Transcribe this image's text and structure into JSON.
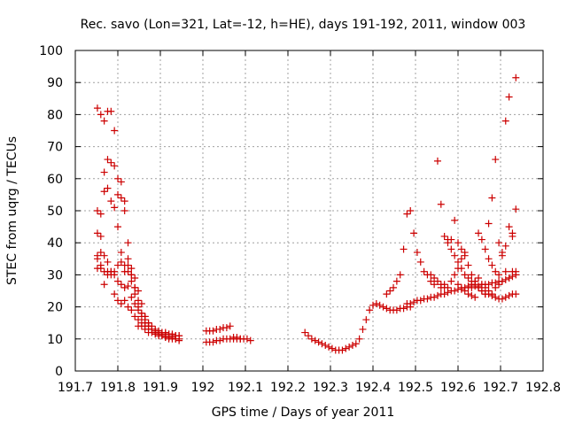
{
  "chart_data": {
    "type": "scatter",
    "title": "Rec. savo (Lon=321, Lat=-12, h=HE), days 191-192, 2011, window 003",
    "xlabel": "GPS time / Days of year 2011",
    "ylabel": "STEC from uqrg / TECUs",
    "xlim": [
      191.7,
      192.8
    ],
    "ylim": [
      0,
      100
    ],
    "x_ticks": [
      191.7,
      191.8,
      191.9,
      192.0,
      192.1,
      192.2,
      192.3,
      192.4,
      192.5,
      192.6,
      192.7,
      192.8
    ],
    "x_tick_labels": [
      "191.7",
      "191.8",
      "191.9",
      "192",
      "192.1",
      "192.2",
      "192.3",
      "192.4",
      "192.5",
      "192.6",
      "192.7",
      "192.8"
    ],
    "y_ticks": [
      0,
      10,
      20,
      30,
      40,
      50,
      60,
      70,
      80,
      90,
      100
    ],
    "y_tick_labels": [
      "0",
      "10",
      "20",
      "30",
      "40",
      "50",
      "60",
      "70",
      "80",
      "90",
      "100"
    ],
    "grid": true,
    "marker": "plus",
    "color": "#cc0000",
    "series": [
      {
        "x": [
          191.752,
          191.76,
          191.768,
          191.776,
          191.784,
          191.792,
          191.8,
          191.808,
          191.816,
          191.824,
          191.832,
          191.84,
          191.848,
          191.856,
          191.864,
          191.872,
          191.88,
          191.888,
          191.896,
          191.904,
          191.912,
          191.92,
          191.928,
          191.936,
          191.944
        ],
        "y": [
          82,
          80,
          78,
          66,
          65,
          64,
          55,
          54,
          53,
          40,
          30,
          24,
          20,
          17,
          15,
          14,
          13,
          12.5,
          12,
          12,
          11.5,
          11.5,
          11,
          11,
          11
        ]
      },
      {
        "x": [
          191.752,
          191.76,
          191.768,
          191.776,
          191.784,
          191.792,
          191.8,
          191.808,
          191.816,
          191.824,
          191.832,
          191.84,
          191.848,
          191.856,
          191.864,
          191.872,
          191.88,
          191.888,
          191.896,
          191.904,
          191.912,
          191.92,
          191.928,
          191.936,
          191.944
        ],
        "y": [
          50,
          49,
          62,
          57,
          53,
          51,
          45,
          37,
          33,
          31,
          28,
          26,
          22,
          18,
          16,
          14,
          13,
          12,
          11.5,
          11,
          11,
          10.5,
          10.5,
          10,
          10
        ]
      },
      {
        "x": [
          191.752,
          191.76,
          191.768,
          191.776,
          191.784,
          191.792,
          191.8,
          191.808,
          191.816,
          191.824,
          191.832,
          191.84,
          191.848,
          191.856,
          191.864,
          191.872,
          191.88,
          191.888,
          191.896,
          191.904,
          191.912,
          191.92
        ],
        "y": [
          43,
          42,
          56,
          81,
          81,
          75,
          60,
          59,
          50,
          35,
          32,
          29,
          25,
          21,
          17,
          15,
          13,
          12,
          11,
          11,
          10.5,
          10
        ]
      },
      {
        "x": [
          191.752,
          191.76,
          191.768,
          191.776,
          191.784,
          191.792,
          191.8,
          191.808,
          191.816,
          191.824,
          191.832,
          191.84,
          191.848,
          191.856,
          191.864,
          191.872,
          191.88,
          191.888,
          191.896,
          191.904,
          191.912,
          191.92,
          191.928,
          191.936,
          191.944
        ],
        "y": [
          36,
          37,
          36,
          34,
          31,
          30,
          28,
          27,
          26,
          26.5,
          23,
          21,
          19,
          18,
          17,
          15,
          14,
          13,
          12.5,
          12,
          12,
          11.5,
          11.5,
          11,
          11
        ]
      },
      {
        "x": [
          191.752,
          191.76,
          191.768,
          191.776,
          191.784,
          191.792,
          191.8,
          191.808,
          191.816,
          191.824,
          191.832,
          191.84,
          191.848,
          191.856,
          191.864,
          191.872,
          191.88,
          191.888,
          191.896,
          191.904,
          191.912,
          191.92,
          191.928,
          191.936,
          191.944
        ],
        "y": [
          32,
          33,
          31,
          31,
          30,
          24,
          22,
          21,
          22,
          20,
          19,
          17,
          16,
          15,
          14,
          13,
          12,
          11.5,
          11,
          11,
          10.5,
          10.5,
          10,
          10,
          9.5
        ]
      },
      {
        "x": [
          191.752,
          191.76,
          191.768,
          191.776,
          191.784,
          191.792,
          191.8,
          191.808,
          191.816,
          191.824,
          191.832,
          191.84,
          191.848,
          191.856,
          191.864,
          191.872
        ],
        "y": [
          35,
          32,
          27,
          30,
          31,
          31,
          33,
          34,
          31,
          33,
          30,
          26,
          14,
          14,
          13,
          12
        ]
      },
      {
        "x": [
          192.008,
          192.016,
          192.024,
          192.032,
          192.04,
          192.048,
          192.056,
          192.064,
          192.072,
          192.08,
          192.088,
          192.096,
          192.104,
          192.112
        ],
        "y": [
          12.5,
          12.5,
          12.5,
          13,
          13,
          13.5,
          13.5,
          14,
          10,
          10,
          10,
          10,
          10,
          9.5
        ]
      },
      {
        "x": [
          192.008,
          192.016,
          192.024,
          192.032,
          192.04,
          192.048,
          192.056,
          192.064,
          192.072,
          192.08,
          192.088
        ],
        "y": [
          9,
          9,
          9,
          9.5,
          9.5,
          10,
          10,
          10,
          10.5,
          10.5,
          10
        ]
      },
      {
        "x": [
          192.24,
          192.248,
          192.256,
          192.264,
          192.272,
          192.28,
          192.288,
          192.296,
          192.304,
          192.312,
          192.32,
          192.328,
          192.336,
          192.344,
          192.352,
          192.36,
          192.368,
          192.376,
          192.384,
          192.392,
          192.4,
          192.408,
          192.416,
          192.424,
          192.432,
          192.44,
          192.448,
          192.456,
          192.464,
          192.472,
          192.48,
          192.488
        ],
        "y": [
          12,
          11,
          10,
          9.5,
          9,
          8.5,
          8,
          7.5,
          7,
          6.5,
          6.5,
          6.5,
          7,
          7.5,
          8,
          8.5,
          10,
          13,
          16,
          19,
          20.5,
          21,
          20.5,
          20,
          19.5,
          19,
          19,
          19,
          19.5,
          19.5,
          20,
          20
        ]
      },
      {
        "x": [
          192.48,
          192.488,
          192.496,
          192.504,
          192.512,
          192.52,
          192.528,
          192.536,
          192.544,
          192.552,
          192.56,
          192.568,
          192.576,
          192.584,
          192.592,
          192.6,
          192.608,
          192.616,
          192.624,
          192.632,
          192.64,
          192.648,
          192.656,
          192.664,
          192.672,
          192.68,
          192.688,
          192.696,
          192.704,
          192.712,
          192.72,
          192.728,
          192.736
        ],
        "y": [
          21,
          21,
          21.5,
          22,
          22,
          22.5,
          22.5,
          23,
          23,
          23.5,
          24,
          24,
          24.5,
          25,
          25,
          25.5,
          25.5,
          26,
          26,
          26,
          26.5,
          26.5,
          27,
          27,
          27,
          27.5,
          27.5,
          28,
          28,
          28.5,
          29,
          29.5,
          30
        ]
      },
      {
        "x": [
          192.432,
          192.44,
          192.448,
          192.456,
          192.464,
          192.472,
          192.48,
          192.488,
          192.496,
          192.504,
          192.512,
          192.52,
          192.528,
          192.536,
          192.544,
          192.552,
          192.56,
          192.568,
          192.576,
          192.584,
          192.592,
          192.6,
          192.608,
          192.616,
          192.624,
          192.632,
          192.64,
          192.648,
          192.656,
          192.664,
          192.672,
          192.68,
          192.688,
          192.696,
          192.704,
          192.712,
          192.72,
          192.728,
          192.736
        ],
        "y": [
          24,
          25,
          26,
          28,
          30,
          38,
          49,
          50,
          43,
          37,
          34,
          31,
          30,
          28,
          27,
          65.5,
          52,
          42,
          41,
          38,
          36,
          34,
          32,
          30,
          29,
          28,
          27,
          26,
          25,
          24,
          24,
          23.5,
          23,
          22.5,
          22.5,
          23,
          23.5,
          24,
          24
        ]
      },
      {
        "x": [
          192.536,
          192.544,
          192.552,
          192.56,
          192.568,
          192.576,
          192.584,
          192.592,
          192.6,
          192.608,
          192.616,
          192.624,
          192.632,
          192.64,
          192.648,
          192.656,
          192.664,
          192.672,
          192.68,
          192.688,
          192.696,
          192.704,
          192.712,
          192.72,
          192.728,
          192.736
        ],
        "y": [
          30,
          29,
          28,
          27,
          26,
          40,
          41,
          47,
          40,
          38,
          36,
          33,
          30,
          28,
          26,
          25,
          24,
          46,
          54,
          66,
          40,
          36,
          31,
          29,
          31,
          31
        ]
      },
      {
        "x": [
          192.6,
          192.608,
          192.616,
          192.624,
          192.632,
          192.64,
          192.648,
          192.656,
          192.664,
          192.672,
          192.68,
          192.688,
          192.696,
          192.704,
          192.712,
          192.72,
          192.728,
          192.736
        ],
        "y": [
          27,
          26,
          25,
          24,
          23.5,
          23,
          43,
          41,
          38,
          35,
          33,
          31,
          30,
          37,
          78,
          85.5,
          42,
          91.5
        ]
      },
      {
        "x": [
          192.56,
          192.568,
          192.576,
          192.584,
          192.592,
          192.6,
          192.608,
          192.616,
          192.624,
          192.632,
          192.64,
          192.648,
          192.656,
          192.664,
          192.672,
          192.68,
          192.688,
          192.696,
          192.704,
          192.712,
          192.72,
          192.728,
          192.736
        ],
        "y": [
          26,
          27,
          26,
          28,
          30,
          32,
          35,
          37,
          26.5,
          27,
          28,
          29,
          27,
          26,
          25,
          24,
          26,
          27,
          28,
          39,
          45,
          43,
          50.5
        ]
      }
    ]
  }
}
